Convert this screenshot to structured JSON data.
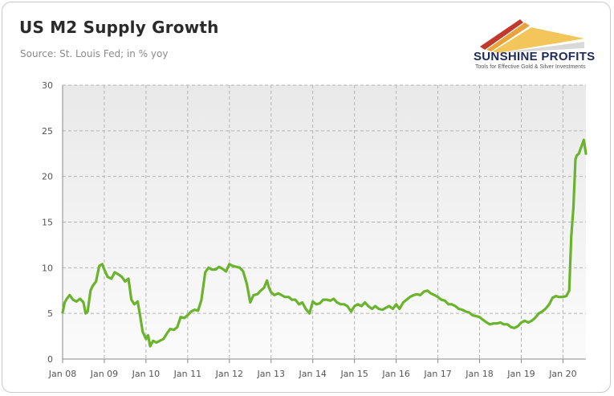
{
  "header": {
    "title": "US M2 Supply Growth",
    "subtitle": "Source: St. Louis Fed; in % yoy"
  },
  "logo": {
    "name": "SUNSHINE PROFITS",
    "tagline": "Tools for Effective Gold & Silver Investments",
    "colors": [
      "#c0392b",
      "#e8a33a",
      "#d9d9d9"
    ]
  },
  "chart_data": {
    "type": "line",
    "title": "US M2 Supply Growth",
    "subtitle": "Source: St. Louis Fed; in % yoy",
    "xlabel": "",
    "ylabel": "",
    "ylim": [
      0,
      30
    ],
    "xlim": [
      2008.0,
      2020.55
    ],
    "yticks": [
      0,
      5,
      10,
      15,
      20,
      25,
      30
    ],
    "xticks": [
      {
        "x": 2008,
        "label": "Jan 08"
      },
      {
        "x": 2009,
        "label": "Jan 09"
      },
      {
        "x": 2010,
        "label": "Jan 10"
      },
      {
        "x": 2011,
        "label": "Jan 11"
      },
      {
        "x": 2012,
        "label": "Jan 12"
      },
      {
        "x": 2013,
        "label": "Jan 13"
      },
      {
        "x": 2014,
        "label": "Jan 14"
      },
      {
        "x": 2015,
        "label": "Jan 15"
      },
      {
        "x": 2016,
        "label": "Jan 16"
      },
      {
        "x": 2017,
        "label": "Jan 17"
      },
      {
        "x": 2018,
        "label": "Jan 18"
      },
      {
        "x": 2019,
        "label": "Jan 19"
      },
      {
        "x": 2020,
        "label": "Jan 20"
      }
    ],
    "grid": true,
    "line_color": "#6ab42d",
    "series": [
      {
        "values": [
          [
            2008.0,
            5.1
          ],
          [
            2008.05,
            6.2
          ],
          [
            2008.1,
            6.6
          ],
          [
            2008.17,
            7.0
          ],
          [
            2008.25,
            6.5
          ],
          [
            2008.33,
            6.3
          ],
          [
            2008.42,
            6.6
          ],
          [
            2008.5,
            6.2
          ],
          [
            2008.55,
            5.0
          ],
          [
            2008.6,
            5.2
          ],
          [
            2008.67,
            7.5
          ],
          [
            2008.72,
            8.0
          ],
          [
            2008.8,
            8.5
          ],
          [
            2008.88,
            10.2
          ],
          [
            2008.95,
            10.4
          ],
          [
            2009.0,
            9.8
          ],
          [
            2009.08,
            9.0
          ],
          [
            2009.17,
            8.8
          ],
          [
            2009.25,
            9.5
          ],
          [
            2009.33,
            9.3
          ],
          [
            2009.42,
            9.0
          ],
          [
            2009.5,
            8.5
          ],
          [
            2009.58,
            8.8
          ],
          [
            2009.65,
            6.5
          ],
          [
            2009.72,
            6.0
          ],
          [
            2009.8,
            6.3
          ],
          [
            2009.85,
            5.0
          ],
          [
            2009.92,
            3.0
          ],
          [
            2010.0,
            2.2
          ],
          [
            2010.05,
            2.6
          ],
          [
            2010.1,
            1.4
          ],
          [
            2010.17,
            2.0
          ],
          [
            2010.25,
            1.8
          ],
          [
            2010.33,
            2.0
          ],
          [
            2010.42,
            2.2
          ],
          [
            2010.5,
            2.8
          ],
          [
            2010.58,
            3.3
          ],
          [
            2010.67,
            3.2
          ],
          [
            2010.75,
            3.5
          ],
          [
            2010.83,
            4.6
          ],
          [
            2010.92,
            4.5
          ],
          [
            2011.0,
            4.8
          ],
          [
            2011.08,
            5.2
          ],
          [
            2011.17,
            5.4
          ],
          [
            2011.25,
            5.3
          ],
          [
            2011.33,
            6.5
          ],
          [
            2011.42,
            9.5
          ],
          [
            2011.5,
            10.0
          ],
          [
            2011.58,
            9.8
          ],
          [
            2011.67,
            9.8
          ],
          [
            2011.75,
            10.1
          ],
          [
            2011.83,
            9.9
          ],
          [
            2011.92,
            9.6
          ],
          [
            2012.0,
            10.4
          ],
          [
            2012.08,
            10.2
          ],
          [
            2012.17,
            10.1
          ],
          [
            2012.25,
            10.0
          ],
          [
            2012.33,
            9.6
          ],
          [
            2012.42,
            8.2
          ],
          [
            2012.5,
            6.2
          ],
          [
            2012.58,
            7.0
          ],
          [
            2012.67,
            7.1
          ],
          [
            2012.75,
            7.5
          ],
          [
            2012.83,
            7.8
          ],
          [
            2012.9,
            8.6
          ],
          [
            2012.95,
            7.8
          ],
          [
            2013.0,
            7.3
          ],
          [
            2013.08,
            7.0
          ],
          [
            2013.17,
            7.2
          ],
          [
            2013.25,
            7.0
          ],
          [
            2013.33,
            6.8
          ],
          [
            2013.42,
            6.8
          ],
          [
            2013.5,
            6.5
          ],
          [
            2013.58,
            6.5
          ],
          [
            2013.67,
            6.0
          ],
          [
            2013.75,
            6.2
          ],
          [
            2013.83,
            5.5
          ],
          [
            2013.92,
            5.0
          ],
          [
            2014.0,
            6.3
          ],
          [
            2014.08,
            6.0
          ],
          [
            2014.17,
            6.1
          ],
          [
            2014.25,
            6.5
          ],
          [
            2014.33,
            6.5
          ],
          [
            2014.42,
            6.4
          ],
          [
            2014.5,
            6.6
          ],
          [
            2014.58,
            6.2
          ],
          [
            2014.67,
            6.0
          ],
          [
            2014.75,
            6.0
          ],
          [
            2014.83,
            5.8
          ],
          [
            2014.92,
            5.2
          ],
          [
            2015.0,
            5.8
          ],
          [
            2015.08,
            6.0
          ],
          [
            2015.17,
            5.8
          ],
          [
            2015.25,
            6.2
          ],
          [
            2015.33,
            5.8
          ],
          [
            2015.42,
            5.5
          ],
          [
            2015.5,
            5.8
          ],
          [
            2015.58,
            5.5
          ],
          [
            2015.67,
            5.4
          ],
          [
            2015.75,
            5.6
          ],
          [
            2015.83,
            5.8
          ],
          [
            2015.92,
            5.5
          ],
          [
            2016.0,
            6.0
          ],
          [
            2016.08,
            5.5
          ],
          [
            2016.17,
            6.2
          ],
          [
            2016.25,
            6.5
          ],
          [
            2016.33,
            6.8
          ],
          [
            2016.42,
            7.0
          ],
          [
            2016.5,
            7.1
          ],
          [
            2016.58,
            7.0
          ],
          [
            2016.67,
            7.4
          ],
          [
            2016.75,
            7.5
          ],
          [
            2016.83,
            7.2
          ],
          [
            2016.92,
            7.0
          ],
          [
            2017.0,
            6.8
          ],
          [
            2017.08,
            6.5
          ],
          [
            2017.17,
            6.4
          ],
          [
            2017.25,
            6.0
          ],
          [
            2017.33,
            6.0
          ],
          [
            2017.42,
            5.8
          ],
          [
            2017.5,
            5.5
          ],
          [
            2017.58,
            5.4
          ],
          [
            2017.67,
            5.2
          ],
          [
            2017.75,
            5.1
          ],
          [
            2017.83,
            4.8
          ],
          [
            2017.92,
            4.7
          ],
          [
            2018.0,
            4.6
          ],
          [
            2018.08,
            4.3
          ],
          [
            2018.17,
            4.0
          ],
          [
            2018.25,
            3.8
          ],
          [
            2018.33,
            3.9
          ],
          [
            2018.42,
            3.9
          ],
          [
            2018.5,
            4.0
          ],
          [
            2018.58,
            3.8
          ],
          [
            2018.67,
            3.8
          ],
          [
            2018.75,
            3.5
          ],
          [
            2018.83,
            3.4
          ],
          [
            2018.92,
            3.6
          ],
          [
            2019.0,
            4.0
          ],
          [
            2019.08,
            4.2
          ],
          [
            2019.17,
            4.0
          ],
          [
            2019.25,
            4.2
          ],
          [
            2019.33,
            4.5
          ],
          [
            2019.42,
            5.0
          ],
          [
            2019.5,
            5.2
          ],
          [
            2019.58,
            5.5
          ],
          [
            2019.67,
            6.0
          ],
          [
            2019.75,
            6.7
          ],
          [
            2019.83,
            6.9
          ],
          [
            2019.9,
            6.8
          ],
          [
            2020.0,
            6.8
          ],
          [
            2020.08,
            6.9
          ],
          [
            2020.15,
            7.5
          ],
          [
            2020.2,
            13.5
          ],
          [
            2020.25,
            16.5
          ],
          [
            2020.3,
            21.9
          ],
          [
            2020.33,
            22.3
          ],
          [
            2020.38,
            22.5
          ],
          [
            2020.42,
            23.0
          ],
          [
            2020.46,
            23.5
          ],
          [
            2020.5,
            24.0
          ],
          [
            2020.55,
            22.5
          ]
        ]
      }
    ]
  }
}
